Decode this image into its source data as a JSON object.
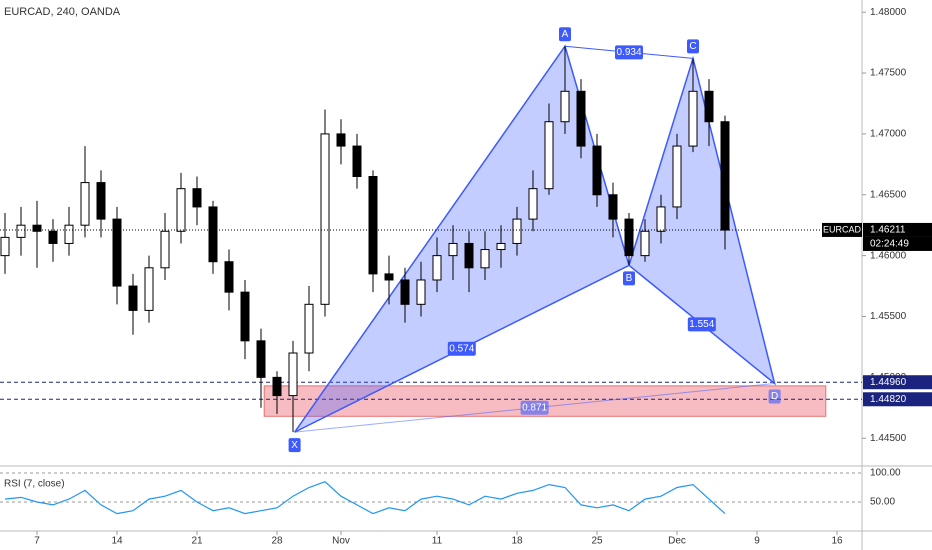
{
  "header": {
    "symbol": "EURCAD, 240, OANDA"
  },
  "chart_data": [
    {
      "type": "candlestick",
      "x": [
        -2,
        -1,
        0,
        1,
        2,
        3,
        4,
        5,
        6,
        7,
        8,
        9,
        10,
        11,
        12,
        13,
        14,
        15,
        16,
        17,
        18,
        19,
        20,
        21,
        22,
        23,
        24,
        25,
        26,
        27,
        28,
        29,
        30,
        31,
        32,
        33,
        34,
        35,
        36,
        37,
        38,
        39,
        40,
        41,
        42,
        43
      ],
      "open": [
        1.46,
        1.4615,
        1.4625,
        1.462,
        1.461,
        1.4625,
        1.466,
        1.463,
        1.4575,
        1.4555,
        1.459,
        1.462,
        1.4655,
        1.464,
        1.4595,
        1.457,
        1.453,
        1.45,
        1.4485,
        1.452,
        1.456,
        1.47,
        1.469,
        1.4665,
        1.4585,
        1.458,
        1.456,
        1.458,
        1.46,
        1.461,
        1.459,
        1.4605,
        1.461,
        1.463,
        1.4655,
        1.471,
        1.4735,
        1.469,
        1.465,
        1.463,
        1.46,
        1.462,
        1.464,
        1.469,
        1.4735,
        1.471
      ],
      "high": [
        1.4635,
        1.464,
        1.4645,
        1.463,
        1.464,
        1.469,
        1.467,
        1.464,
        1.4585,
        1.46,
        1.4635,
        1.4668,
        1.4665,
        1.4645,
        1.4605,
        1.458,
        1.454,
        1.4505,
        1.453,
        1.4575,
        1.472,
        1.4712,
        1.47,
        1.467,
        1.46,
        1.459,
        1.4595,
        1.4615,
        1.4625,
        1.462,
        1.462,
        1.4625,
        1.464,
        1.467,
        1.4725,
        1.4772,
        1.4745,
        1.47,
        1.466,
        1.4635,
        1.463,
        1.465,
        1.47,
        1.4762,
        1.4745,
        1.4715
      ],
      "low": [
        1.4585,
        1.46,
        1.459,
        1.4595,
        1.46,
        1.4615,
        1.4615,
        1.456,
        1.4535,
        1.4545,
        1.458,
        1.461,
        1.4625,
        1.4585,
        1.4555,
        1.4515,
        1.4475,
        1.447,
        1.4455,
        1.4505,
        1.455,
        1.4675,
        1.4655,
        1.457,
        1.456,
        1.4545,
        1.455,
        1.457,
        1.458,
        1.457,
        1.458,
        1.459,
        1.46,
        1.462,
        1.465,
        1.47,
        1.468,
        1.464,
        1.4615,
        1.4592,
        1.4595,
        1.461,
        1.463,
        1.4685,
        1.469,
        1.4605
      ],
      "close": [
        1.4615,
        1.4625,
        1.462,
        1.461,
        1.4625,
        1.466,
        1.463,
        1.4575,
        1.4555,
        1.459,
        1.462,
        1.4655,
        1.464,
        1.4595,
        1.457,
        1.453,
        1.45,
        1.4485,
        1.452,
        1.456,
        1.47,
        1.469,
        1.4665,
        1.4585,
        1.458,
        1.456,
        1.458,
        1.46,
        1.461,
        1.459,
        1.4605,
        1.461,
        1.463,
        1.4655,
        1.471,
        1.4735,
        1.469,
        1.465,
        1.463,
        1.46,
        1.462,
        1.464,
        1.469,
        1.4735,
        1.471,
        1.4621
      ],
      "up_color": "#ffffff",
      "down_color": "#000000",
      "xlim": [
        -2.3125,
        51.5625
      ],
      "xticks": [
        {
          "value": 0,
          "label": "7"
        },
        {
          "value": 5,
          "label": "14"
        },
        {
          "value": 10,
          "label": "21"
        },
        {
          "value": 15,
          "label": "28"
        },
        {
          "value": 19,
          "label": "Nov"
        },
        {
          "value": 25,
          "label": "11"
        },
        {
          "value": 30,
          "label": "18"
        },
        {
          "value": 35,
          "label": "25"
        },
        {
          "value": 40,
          "label": "Dec"
        },
        {
          "value": 45,
          "label": "9"
        },
        {
          "value": 50,
          "label": "16"
        }
      ],
      "ylim": [
        1.4428,
        1.481
      ],
      "yticks": [
        {
          "value": 1.445,
          "label": "1.44500"
        },
        {
          "value": 1.45,
          "label": "1.45000"
        },
        {
          "value": 1.455,
          "label": "1.45500"
        },
        {
          "value": 1.46,
          "label": "1.46000"
        },
        {
          "value": 1.465,
          "label": "1.46500"
        },
        {
          "value": 1.47,
          "label": "1.47000"
        },
        {
          "value": 1.475,
          "label": "1.47500"
        },
        {
          "value": 1.48,
          "label": "1.48000"
        }
      ],
      "last_price": {
        "symbol": "EURCAD",
        "value": 1.46211,
        "label": "1.46211",
        "countdown": "02:24:49"
      },
      "levels": [
        {
          "value": 1.4496,
          "label": "1.44960"
        },
        {
          "value": 1.4482,
          "label": "1.44820"
        }
      ],
      "level_color": "#1a237e",
      "zone": {
        "top": 1.4493,
        "bottom": 1.4468,
        "x_start": 14.2,
        "x_end": 49.3,
        "color": "#f4a6ad"
      },
      "pattern": {
        "color": "#3d5afe",
        "points": [
          {
            "name": "X",
            "x": 16.1,
            "y": 1.4455
          },
          {
            "name": "A",
            "x": 33,
            "y": 1.4772
          },
          {
            "name": "B",
            "x": 37,
            "y": 1.4592
          },
          {
            "name": "C",
            "x": 41,
            "y": 1.4762
          },
          {
            "name": "D",
            "x": 46.1,
            "y": 1.4495
          }
        ],
        "ratios": [
          0.574,
          0.934,
          1.554,
          0.871
        ]
      }
    },
    {
      "type": "line",
      "title": "RSI (7, close)",
      "color": "#2196f3",
      "x": [
        -2,
        -1,
        0,
        1,
        2,
        3,
        4,
        5,
        6,
        7,
        8,
        9,
        10,
        11,
        12,
        13,
        14,
        15,
        16,
        17,
        18,
        19,
        20,
        21,
        22,
        23,
        24,
        25,
        26,
        27,
        28,
        29,
        30,
        31,
        32,
        33,
        34,
        35,
        36,
        37,
        38,
        39,
        40,
        41,
        42,
        43
      ],
      "values": [
        55,
        58,
        50,
        45,
        55,
        70,
        45,
        30,
        35,
        55,
        60,
        70,
        50,
        35,
        40,
        30,
        35,
        40,
        60,
        75,
        85,
        60,
        45,
        30,
        40,
        35,
        55,
        60,
        55,
        45,
        60,
        55,
        65,
        70,
        80,
        75,
        45,
        40,
        45,
        35,
        55,
        60,
        75,
        80,
        55,
        30
      ],
      "ylim": [
        0,
        100
      ],
      "yticks": [
        {
          "value": 50,
          "label": "50.00"
        },
        {
          "value": 100,
          "label": "100.00"
        }
      ]
    }
  ]
}
